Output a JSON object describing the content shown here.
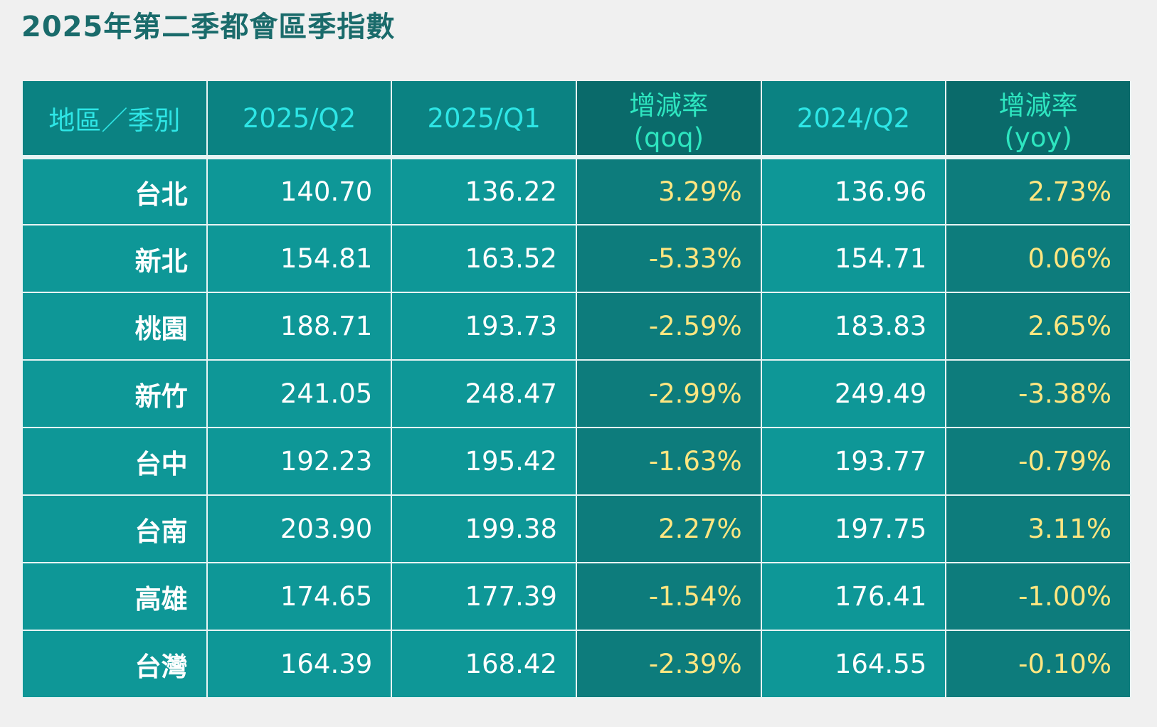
{
  "title": "2025年第二季都會區季指數",
  "table": {
    "headers": [
      "地區／季別",
      "2025/Q2",
      "2025/Q1",
      "增減率(qoq)",
      "2024/Q2",
      "增減率(yoy)"
    ],
    "rows": [
      [
        "台北",
        "140.70",
        "136.22",
        "3.29%",
        "136.96",
        "2.73%"
      ],
      [
        "新北",
        "154.81",
        "163.52",
        "-5.33%",
        "154.71",
        "0.06%"
      ],
      [
        "桃園",
        "188.71",
        "193.73",
        "-2.59%",
        "183.83",
        "2.65%"
      ],
      [
        "新竹",
        "241.05",
        "248.47",
        "-2.99%",
        "249.49",
        "-3.38%"
      ],
      [
        "台中",
        "192.23",
        "195.42",
        "-1.63%",
        "193.77",
        "-0.79%"
      ],
      [
        "台南",
        "203.90",
        "199.38",
        "2.27%",
        "197.75",
        "3.11%"
      ],
      [
        "高雄",
        "174.65",
        "177.39",
        "-1.54%",
        "176.41",
        "-1.00%"
      ],
      [
        "台灣",
        "164.39",
        "168.42",
        "-2.39%",
        "164.55",
        "-0.10%"
      ]
    ]
  },
  "colors": {
    "title": "#1a6b6b",
    "header_bg": "#0b8282",
    "header_text": "#2ee6e6",
    "rate_col_bg": "#0d7c7c",
    "rate_text": "#ffe680",
    "cell_bg": "#0e9797",
    "cell_text": "#ffffff"
  }
}
